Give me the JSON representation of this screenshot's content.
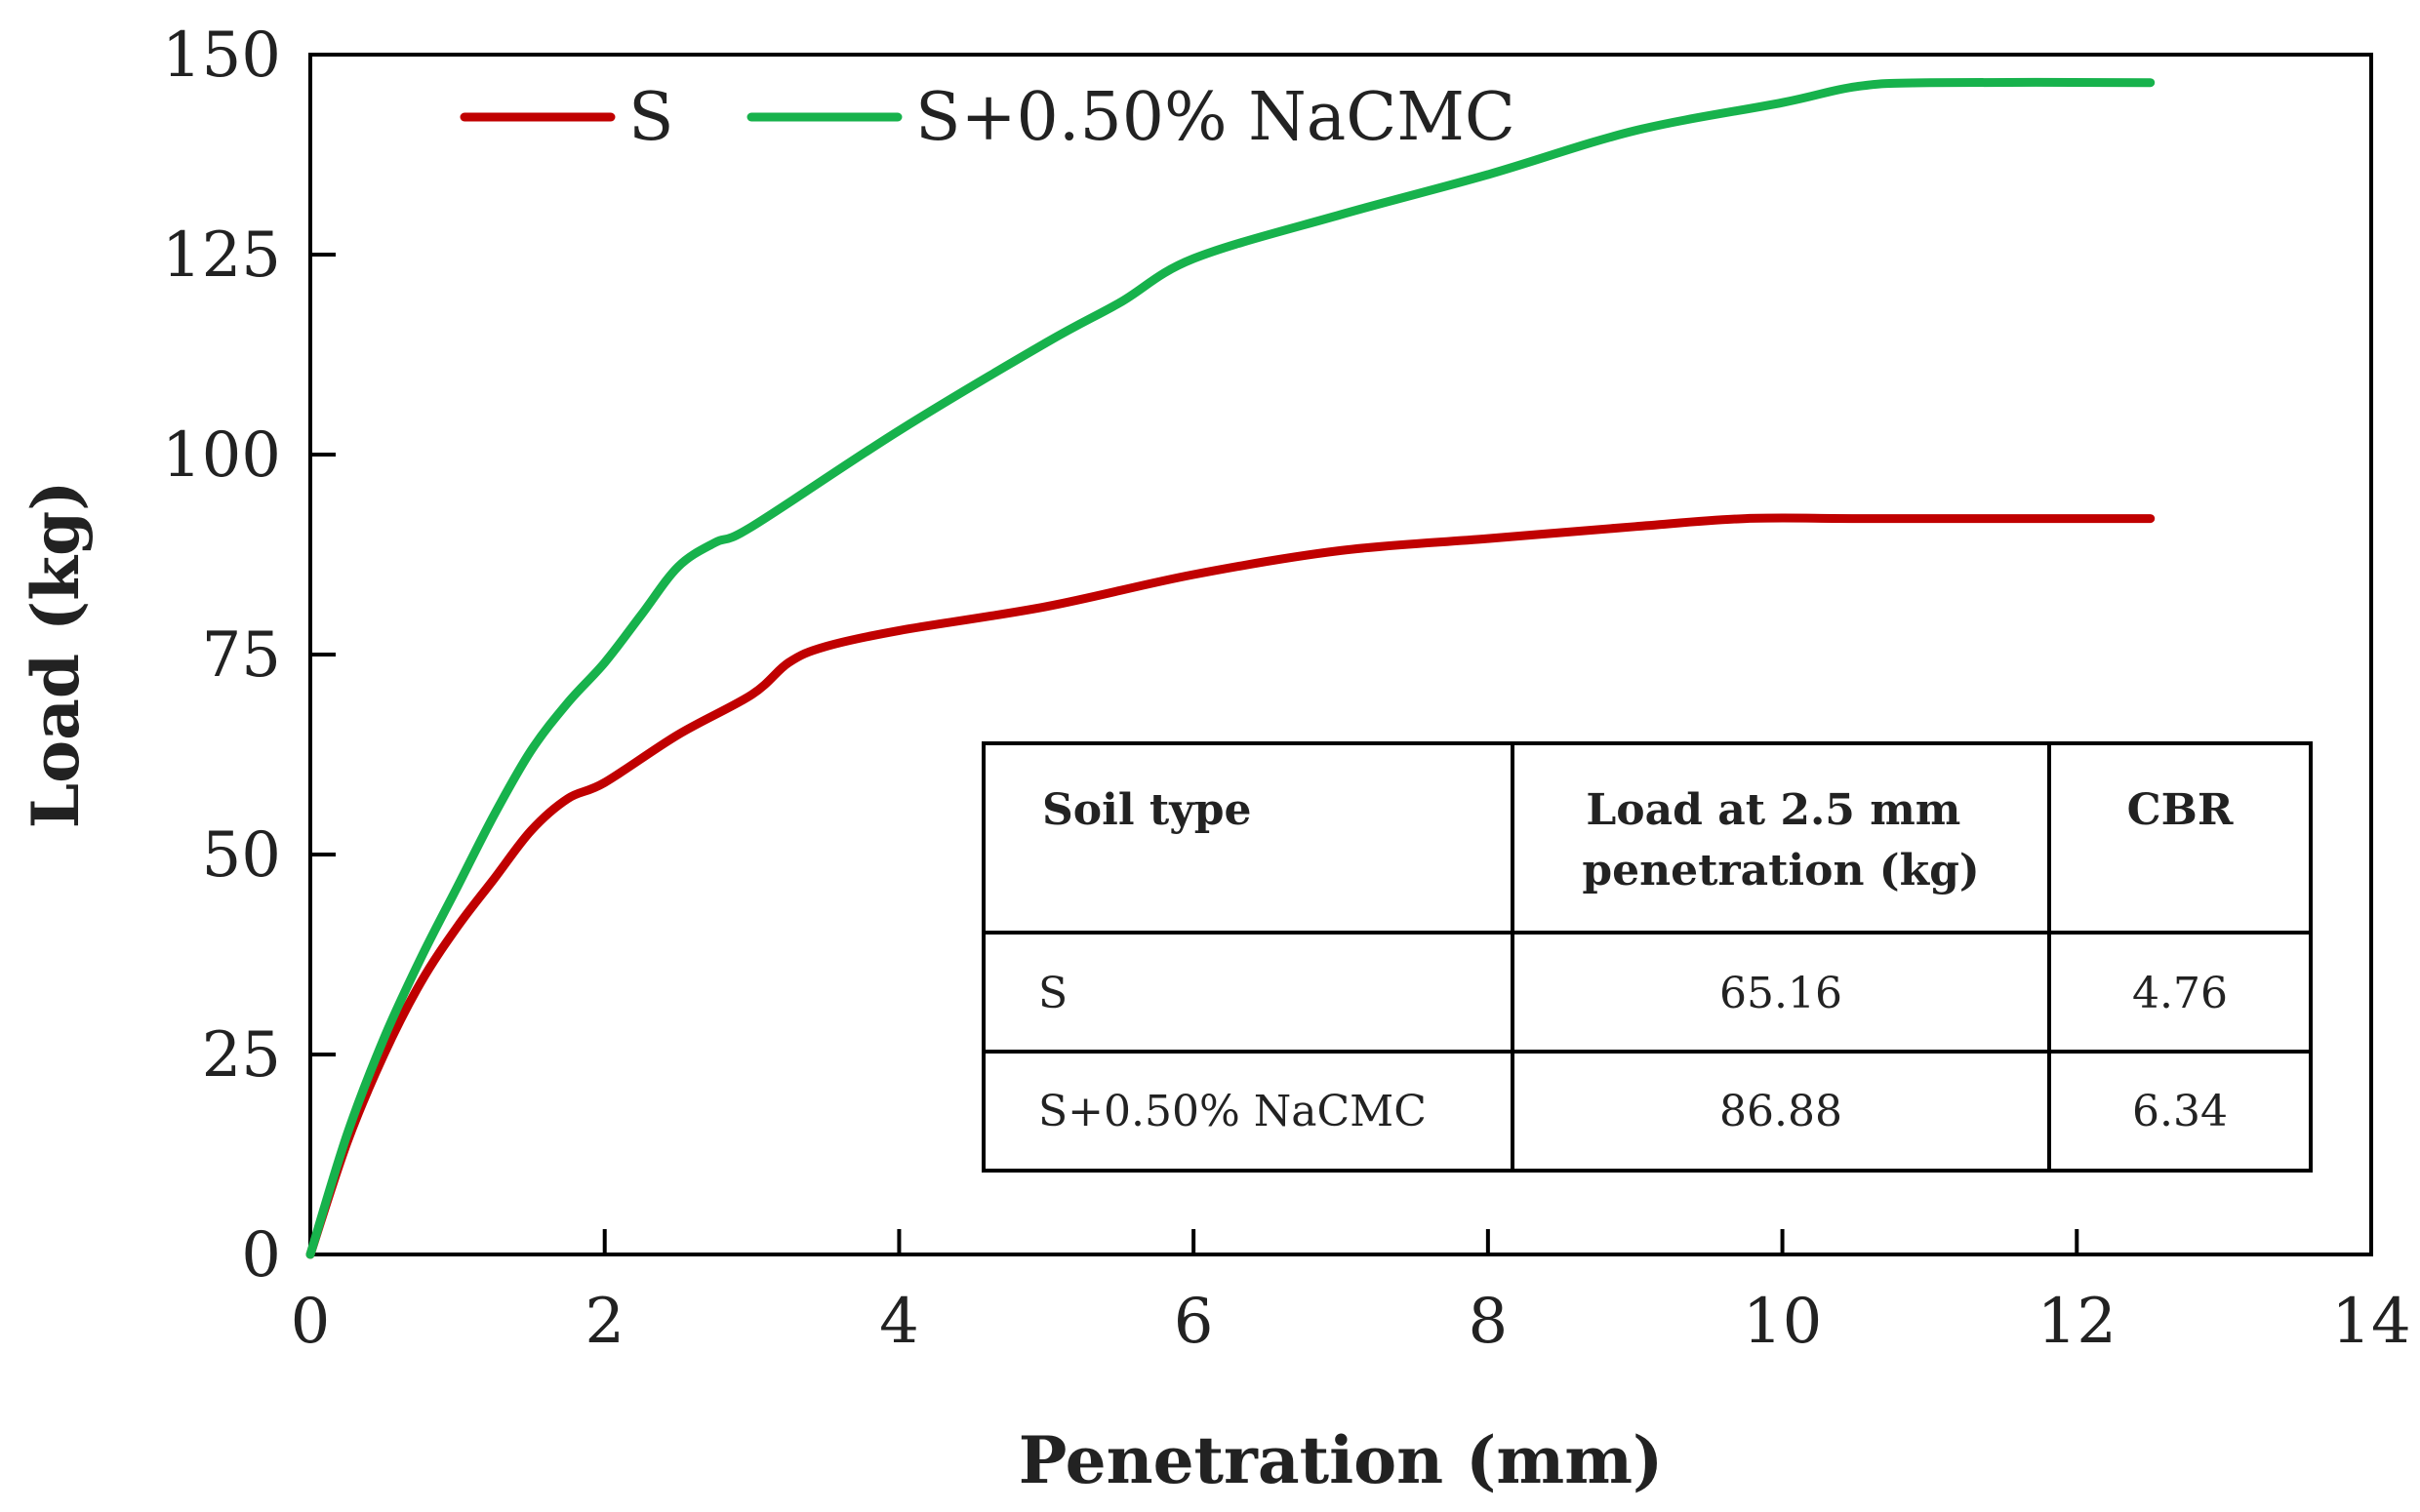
{
  "chart_data": {
    "type": "line",
    "xlabel": "Penetration (mm)",
    "ylabel": "Load (kg)",
    "xlim": [
      0,
      14
    ],
    "ylim": [
      0,
      150
    ],
    "x_ticks": [
      0,
      2,
      4,
      6,
      8,
      10,
      12,
      14
    ],
    "y_ticks": [
      0,
      25,
      50,
      75,
      100,
      125,
      150
    ],
    "grid": false,
    "legend_position": "top-left",
    "series": [
      {
        "name": "S",
        "color": "#c00000",
        "points": [
          [
            0,
            0
          ],
          [
            0.25,
            14
          ],
          [
            0.5,
            25
          ],
          [
            0.75,
            34
          ],
          [
            1.0,
            41
          ],
          [
            1.25,
            47
          ],
          [
            1.5,
            53
          ],
          [
            1.75,
            57
          ],
          [
            2.0,
            59
          ],
          [
            2.5,
            65
          ],
          [
            3.0,
            70
          ],
          [
            3.25,
            74
          ],
          [
            3.5,
            76
          ],
          [
            4.0,
            78
          ],
          [
            5.0,
            81
          ],
          [
            6.0,
            85
          ],
          [
            7.0,
            88
          ],
          [
            8.0,
            89.5
          ],
          [
            9.0,
            91
          ],
          [
            9.75,
            92
          ],
          [
            10.5,
            92
          ],
          [
            11.5,
            92
          ],
          [
            12.5,
            92
          ]
        ]
      },
      {
        "name": "S+0.50% NaCMC",
        "color": "#17b24c",
        "points": [
          [
            0,
            0
          ],
          [
            0.25,
            15
          ],
          [
            0.5,
            27
          ],
          [
            0.75,
            37
          ],
          [
            1.0,
            46
          ],
          [
            1.25,
            55
          ],
          [
            1.5,
            63
          ],
          [
            1.75,
            69
          ],
          [
            2.0,
            74
          ],
          [
            2.25,
            80
          ],
          [
            2.5,
            86
          ],
          [
            2.75,
            89
          ],
          [
            3.0,
            91
          ],
          [
            4.0,
            103
          ],
          [
            5.0,
            114
          ],
          [
            5.5,
            119
          ],
          [
            6.0,
            124.5
          ],
          [
            7.0,
            130
          ],
          [
            8.0,
            135
          ],
          [
            9.0,
            140.5
          ],
          [
            10.0,
            144
          ],
          [
            10.5,
            146
          ],
          [
            11.0,
            146.5
          ],
          [
            12.5,
            146.5
          ]
        ]
      }
    ],
    "inset_table": {
      "headers": [
        "Soil type",
        "Load at 2.5 mm penetration (kg)",
        "CBR"
      ],
      "rows": [
        [
          "S",
          "65.16",
          "4.76"
        ],
        [
          "S+0.50% NaCMC",
          "86.88",
          "6.34"
        ]
      ]
    }
  }
}
